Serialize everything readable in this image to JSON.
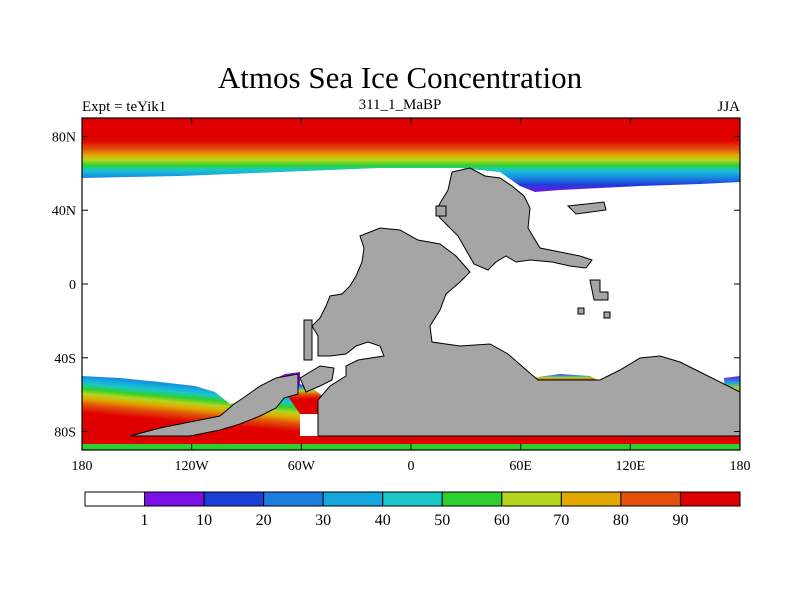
{
  "title": "Atmos Sea Ice Concentration",
  "left_string": "Expt = teYik1",
  "center_string": "311_1_MaBP",
  "right_string": "JJA",
  "map": {
    "projection": "cylindrical equidistant",
    "lon_range": [
      -180,
      180
    ],
    "lat_range": [
      -90,
      90
    ],
    "land_color": "#a5a5a5",
    "x_ticks": [
      {
        "value": -180,
        "label": "180"
      },
      {
        "value": -120,
        "label": "120W"
      },
      {
        "value": -60,
        "label": "60W"
      },
      {
        "value": 0,
        "label": "0"
      },
      {
        "value": 60,
        "label": "60E"
      },
      {
        "value": 120,
        "label": "120E"
      },
      {
        "value": 180,
        "label": "180"
      }
    ],
    "y_ticks": [
      {
        "value": 80,
        "label": "80N"
      },
      {
        "value": 40,
        "label": "40N"
      },
      {
        "value": 0,
        "label": "0"
      },
      {
        "value": -40,
        "label": "40S"
      },
      {
        "value": -80,
        "label": "80S"
      }
    ]
  },
  "colorbar": {
    "colors": [
      "#ffffff",
      "#7a10e6",
      "#1c3ed8",
      "#1a7ee0",
      "#15a6de",
      "#1ac8c8",
      "#2ed02e",
      "#b4d51e",
      "#e0a800",
      "#e2510b",
      "#e00000"
    ],
    "labels": [
      "1",
      "10",
      "20",
      "30",
      "40",
      "50",
      "60",
      "70",
      "80",
      "90"
    ]
  }
}
